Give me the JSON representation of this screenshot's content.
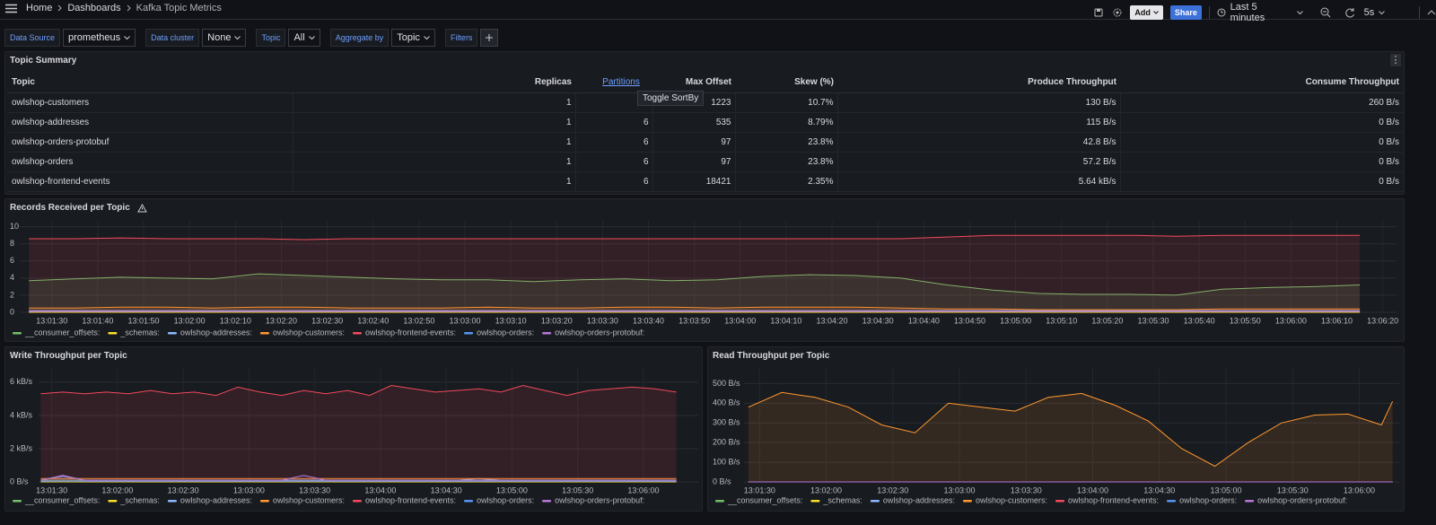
{
  "topbar": {
    "breadcrumb": [
      "Home",
      "Dashboards",
      "Kafka Topic Metrics"
    ],
    "add": "Add",
    "share": "Share",
    "time_range": "Last 5 minutes",
    "refresh": "5s"
  },
  "variables": [
    {
      "label": "Data Source",
      "value": "prometheus"
    },
    {
      "label": "Data cluster",
      "value": "None"
    },
    {
      "label": "Topic",
      "value": "All"
    },
    {
      "label": "Aggregate by",
      "value": "Topic"
    }
  ],
  "filters": "Filters",
  "table": {
    "title": "Topic Summary",
    "tooltip": "Toggle SortBy",
    "columns": [
      "Topic",
      "Replicas",
      "Partitions",
      "Max Offset",
      "Skew (%)",
      "Produce Throughput",
      "Consume Throughput"
    ],
    "rows": [
      [
        "owlshop-customers",
        "1",
        null,
        "1223",
        "10.7%",
        "130 B/s",
        "260 B/s"
      ],
      [
        "owlshop-addresses",
        "1",
        "6",
        "535",
        "8.79%",
        "115 B/s",
        "0 B/s"
      ],
      [
        "owlshop-orders-protobuf",
        "1",
        "6",
        "97",
        "23.8%",
        "42.8 B/s",
        "0 B/s"
      ],
      [
        "owlshop-orders",
        "1",
        "6",
        "97",
        "23.8%",
        "57.2 B/s",
        "0 B/s"
      ],
      [
        "owlshop-frontend-events",
        "1",
        "6",
        "18421",
        "2.35%",
        "5.64 kB/s",
        "0 B/s"
      ]
    ]
  },
  "chart_data": [
    {
      "type": "line",
      "title": "Records Received per Topic",
      "grid": true,
      "x": [
        "13:01:25",
        "13:01:35",
        "13:01:45",
        "13:01:55",
        "13:02:05",
        "13:02:15",
        "13:02:25",
        "13:02:35",
        "13:02:45",
        "13:02:55",
        "13:03:05",
        "13:03:15",
        "13:03:25",
        "13:03:35",
        "13:03:45",
        "13:03:55",
        "13:04:05",
        "13:04:15",
        "13:04:25",
        "13:04:35",
        "13:04:45",
        "13:04:55",
        "13:05:05",
        "13:05:15",
        "13:05:25",
        "13:05:35",
        "13:05:45",
        "13:05:55",
        "13:06:05",
        "13:06:15"
      ],
      "xlim": [
        "13:01:23",
        "13:06:23"
      ],
      "xticks": [
        "13:01:30",
        "13:01:40",
        "13:01:50",
        "13:02:00",
        "13:02:10",
        "13:02:20",
        "13:02:30",
        "13:02:40",
        "13:02:50",
        "13:03:00",
        "13:03:10",
        "13:03:20",
        "13:03:30",
        "13:03:40",
        "13:03:50",
        "13:04:00",
        "13:04:10",
        "13:04:20",
        "13:04:30",
        "13:04:40",
        "13:04:50",
        "13:05:00",
        "13:05:10",
        "13:05:20",
        "13:05:30",
        "13:05:40",
        "13:05:50",
        "13:06:00",
        "13:06:10",
        "13:06:20"
      ],
      "ylim": [
        0,
        10.7
      ],
      "yticks": [
        0,
        2,
        4,
        6,
        8,
        10
      ],
      "series": [
        {
          "name": "__consumer_offsets:",
          "color": "#73bf69",
          "values": [
            3.7,
            3.9,
            4.1,
            4.0,
            3.9,
            4.5,
            4.3,
            4.1,
            3.9,
            3.8,
            3.8,
            3.6,
            3.8,
            3.9,
            3.7,
            3.8,
            4.2,
            4.4,
            4.3,
            4.0,
            3.2,
            2.6,
            2.2,
            2.1,
            2.1,
            2.0,
            2.7,
            2.9,
            3.0,
            3.2
          ]
        },
        {
          "name": "_schemas:",
          "color": "#fade2a",
          "values": [
            0,
            0,
            0,
            0,
            0,
            0,
            0,
            0,
            0,
            0,
            0,
            0,
            0,
            0,
            0,
            0,
            0,
            0,
            0,
            0,
            0,
            0,
            0,
            0,
            0,
            0,
            0,
            0,
            0,
            0
          ]
        },
        {
          "name": "owlshop-addresses:",
          "color": "#8ab8ff",
          "values": [
            0.2,
            0.2,
            0.2,
            0.2,
            0.2,
            0.2,
            0.2,
            0.2,
            0.2,
            0.2,
            0.2,
            0.2,
            0.2,
            0.2,
            0.2,
            0.2,
            0.2,
            0.2,
            0.2,
            0.2,
            0.2,
            0.2,
            0.2,
            0.2,
            0.2,
            0.2,
            0.2,
            0.2,
            0.2,
            0.2
          ]
        },
        {
          "name": "owlshop-customers:",
          "color": "#ff9830",
          "values": [
            0.5,
            0.5,
            0.6,
            0.6,
            0.5,
            0.6,
            0.6,
            0.5,
            0.5,
            0.5,
            0.6,
            0.5,
            0.5,
            0.6,
            0.6,
            0.5,
            0.6,
            0.6,
            0.6,
            0.5,
            0.4,
            0.4,
            0.3,
            0.3,
            0.3,
            0.3,
            0.4,
            0.4,
            0.4,
            0.4
          ]
        },
        {
          "name": "owlshop-frontend-events:",
          "color": "#f2495c",
          "values": [
            8.6,
            8.6,
            8.7,
            8.6,
            8.6,
            8.6,
            8.5,
            8.6,
            8.6,
            8.6,
            8.6,
            8.6,
            8.6,
            8.6,
            8.6,
            8.6,
            8.6,
            8.6,
            8.6,
            8.6,
            8.8,
            9.0,
            9.0,
            9.0,
            9.0,
            8.9,
            9.0,
            9.0,
            9.0,
            9.0
          ]
        },
        {
          "name": "owlshop-orders:",
          "color": "#5794f2",
          "values": [
            0.1,
            0.1,
            0.1,
            0.1,
            0.1,
            0.1,
            0.1,
            0.1,
            0.1,
            0.1,
            0.1,
            0.1,
            0.1,
            0.1,
            0.1,
            0.1,
            0.1,
            0.1,
            0.1,
            0.1,
            0.1,
            0.1,
            0.1,
            0.1,
            0.1,
            0.1,
            0.1,
            0.1,
            0.1,
            0.1
          ]
        },
        {
          "name": "owlshop-orders-protobuf:",
          "color": "#b877d9",
          "values": [
            0.1,
            0.1,
            0.1,
            0.1,
            0.1,
            0.1,
            0.1,
            0.1,
            0.1,
            0.1,
            0.1,
            0.1,
            0.1,
            0.1,
            0.1,
            0.1,
            0.1,
            0.1,
            0.1,
            0.1,
            0.1,
            0.1,
            0.1,
            0.1,
            0.1,
            0.1,
            0.1,
            0.1,
            0.1,
            0.1
          ]
        }
      ]
    },
    {
      "type": "line",
      "title": "Write Throughput per Topic",
      "grid": true,
      "x": [
        "13:01:25",
        "13:01:35",
        "13:01:45",
        "13:01:55",
        "13:02:05",
        "13:02:15",
        "13:02:25",
        "13:02:35",
        "13:02:45",
        "13:02:55",
        "13:03:05",
        "13:03:15",
        "13:03:25",
        "13:03:35",
        "13:03:45",
        "13:03:55",
        "13:04:05",
        "13:04:15",
        "13:04:25",
        "13:04:35",
        "13:04:45",
        "13:04:55",
        "13:05:05",
        "13:05:15",
        "13:05:25",
        "13:05:35",
        "13:05:45",
        "13:05:55",
        "13:06:05",
        "13:06:15"
      ],
      "xlim": [
        "13:01:24",
        "13:06:25"
      ],
      "xticks": [
        "13:01:30",
        "13:02:00",
        "13:02:30",
        "13:03:00",
        "13:03:30",
        "13:04:00",
        "13:04:30",
        "13:05:00",
        "13:05:30",
        "13:06:00"
      ],
      "ylim": [
        0,
        6.8
      ],
      "yticks": [
        {
          "value": 0,
          "label": "0 B/s"
        },
        {
          "value": 2,
          "label": "2 kB/s"
        },
        {
          "value": 4,
          "label": "4 kB/s"
        },
        {
          "value": 6,
          "label": "6 kB/s"
        }
      ],
      "series": [
        {
          "name": "__consumer_offsets:",
          "color": "#73bf69",
          "values": [
            0.1,
            0.1,
            0.1,
            0.1,
            0.1,
            0.1,
            0.1,
            0.1,
            0.1,
            0.1,
            0.1,
            0.1,
            0.1,
            0.1,
            0.1,
            0.1,
            0.1,
            0.1,
            0.1,
            0.1,
            0.1,
            0.1,
            0.1,
            0.1,
            0.1,
            0.1,
            0.1,
            0.1,
            0.1,
            0.1
          ]
        },
        {
          "name": "_schemas:",
          "color": "#fade2a",
          "values": [
            0,
            0,
            0,
            0,
            0,
            0,
            0,
            0,
            0,
            0,
            0,
            0,
            0,
            0,
            0,
            0,
            0,
            0,
            0,
            0,
            0,
            0,
            0,
            0,
            0,
            0,
            0,
            0,
            0,
            0
          ]
        },
        {
          "name": "owlshop-addresses:",
          "color": "#8ab8ff",
          "values": [
            0.1,
            0.35,
            0.1,
            0.1,
            0.1,
            0.1,
            0.1,
            0.1,
            0.1,
            0.1,
            0.1,
            0.1,
            0.1,
            0.1,
            0.1,
            0.1,
            0.1,
            0.1,
            0.1,
            0.1,
            0.2,
            0.1,
            0.1,
            0.1,
            0.1,
            0.1,
            0.1,
            0.1,
            0.1,
            0.1
          ]
        },
        {
          "name": "owlshop-customers:",
          "color": "#ff9830",
          "values": [
            0.2,
            0.2,
            0.2,
            0.2,
            0.2,
            0.2,
            0.2,
            0.2,
            0.2,
            0.2,
            0.2,
            0.2,
            0.2,
            0.2,
            0.2,
            0.2,
            0.2,
            0.2,
            0.2,
            0.2,
            0.2,
            0.2,
            0.2,
            0.2,
            0.2,
            0.2,
            0.2,
            0.2,
            0.2,
            0.2
          ]
        },
        {
          "name": "owlshop-frontend-events:",
          "color": "#f2495c",
          "values": [
            5.3,
            5.4,
            5.3,
            5.4,
            5.3,
            5.5,
            5.3,
            5.4,
            5.2,
            5.7,
            5.4,
            5.2,
            5.5,
            5.3,
            5.5,
            5.2,
            5.8,
            5.6,
            5.4,
            5.5,
            5.6,
            5.4,
            5.8,
            5.5,
            5.2,
            5.5,
            5.6,
            5.7,
            5.6,
            5.4
          ]
        },
        {
          "name": "owlshop-orders:",
          "color": "#5794f2",
          "values": [
            0.05,
            0.05,
            0.05,
            0.05,
            0.05,
            0.05,
            0.05,
            0.05,
            0.05,
            0.05,
            0.05,
            0.05,
            0.05,
            0.05,
            0.05,
            0.05,
            0.05,
            0.05,
            0.05,
            0.05,
            0.05,
            0.05,
            0.05,
            0.05,
            0.05,
            0.05,
            0.05,
            0.05,
            0.05,
            0.05
          ]
        },
        {
          "name": "owlshop-orders-protobuf:",
          "color": "#b877d9",
          "values": [
            0.1,
            0.4,
            0.1,
            0.1,
            0.1,
            0.1,
            0.1,
            0.1,
            0.1,
            0.1,
            0.1,
            0.1,
            0.4,
            0.1,
            0.1,
            0.1,
            0.1,
            0.1,
            0.1,
            0.1,
            0.1,
            0.1,
            0.1,
            0.1,
            0.1,
            0.1,
            0.1,
            0.1,
            0.1,
            0.1
          ]
        }
      ]
    },
    {
      "type": "line",
      "title": "Read Throughput per Topic",
      "grid": true,
      "x": [
        "13:01:25",
        "13:01:40",
        "13:01:55",
        "13:02:10",
        "13:02:25",
        "13:02:40",
        "13:02:55",
        "13:03:10",
        "13:03:25",
        "13:03:40",
        "13:03:55",
        "13:04:10",
        "13:04:25",
        "13:04:40",
        "13:04:55",
        "13:05:10",
        "13:05:25",
        "13:05:40",
        "13:05:55",
        "13:06:10",
        "13:06:15"
      ],
      "xlim": [
        "13:01:23",
        "13:06:18"
      ],
      "xticks": [
        "13:01:30",
        "13:02:00",
        "13:02:30",
        "13:03:00",
        "13:03:30",
        "13:04:00",
        "13:04:30",
        "13:05:00",
        "13:05:30",
        "13:06:00"
      ],
      "ylim": [
        0,
        575
      ],
      "yticks": [
        {
          "value": 0,
          "label": "0 B/s"
        },
        {
          "value": 100,
          "label": "100 B/s"
        },
        {
          "value": 200,
          "label": "200 B/s"
        },
        {
          "value": 300,
          "label": "300 B/s"
        },
        {
          "value": 400,
          "label": "400 B/s"
        },
        {
          "value": 500,
          "label": "500 B/s"
        }
      ],
      "series": [
        {
          "name": "__consumer_offsets:",
          "color": "#73bf69",
          "values": [
            0,
            0,
            0,
            0,
            0,
            0,
            0,
            0,
            0,
            0,
            0,
            0,
            0,
            0,
            0,
            0,
            0,
            0,
            0,
            0,
            0
          ]
        },
        {
          "name": "_schemas:",
          "color": "#fade2a",
          "values": [
            0,
            0,
            0,
            0,
            0,
            0,
            0,
            0,
            0,
            0,
            0,
            0,
            0,
            0,
            0,
            0,
            0,
            0,
            0,
            0,
            0
          ]
        },
        {
          "name": "owlshop-addresses:",
          "color": "#8ab8ff",
          "values": [
            0,
            0,
            0,
            0,
            0,
            0,
            0,
            0,
            0,
            0,
            0,
            0,
            0,
            0,
            0,
            0,
            0,
            0,
            0,
            0,
            0
          ]
        },
        {
          "name": "owlshop-customers:",
          "color": "#ff9830",
          "values": [
            380,
            455,
            430,
            380,
            290,
            250,
            400,
            380,
            360,
            430,
            450,
            390,
            310,
            170,
            80,
            200,
            300,
            340,
            345,
            290,
            410
          ]
        },
        {
          "name": "owlshop-frontend-events:",
          "color": "#f2495c",
          "values": [
            0,
            0,
            0,
            0,
            0,
            0,
            0,
            0,
            0,
            0,
            0,
            0,
            0,
            0,
            0,
            0,
            0,
            0,
            0,
            0,
            0
          ]
        },
        {
          "name": "owlshop-orders:",
          "color": "#5794f2",
          "values": [
            0,
            0,
            0,
            0,
            0,
            0,
            0,
            0,
            0,
            0,
            0,
            0,
            0,
            0,
            0,
            0,
            0,
            0,
            0,
            0,
            0
          ]
        },
        {
          "name": "owlshop-orders-protobuf:",
          "color": "#b877d9",
          "values": [
            0,
            0,
            0,
            0,
            0,
            0,
            0,
            0,
            0,
            0,
            0,
            0,
            0,
            0,
            0,
            0,
            0,
            0,
            0,
            0,
            0
          ]
        }
      ]
    }
  ]
}
